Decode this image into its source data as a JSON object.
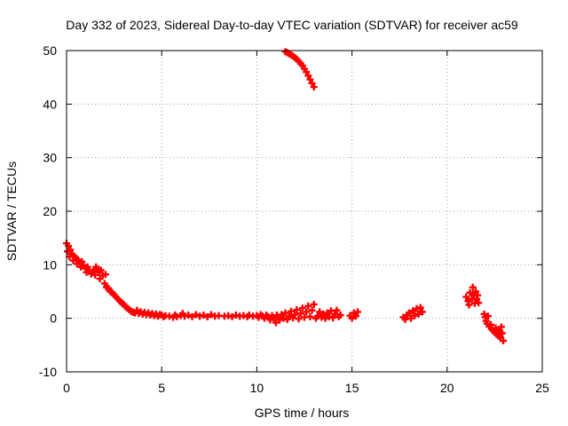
{
  "chart_data": {
    "type": "scatter",
    "title": "Day 332 of 2023, Sidereal Day-to-day VTEC variation (SDTVAR) for receiver ac59",
    "xlabel": "GPS time / hours",
    "ylabel": "SDTVAR / TECUs",
    "xlim": [
      0,
      25
    ],
    "ylim": [
      -10,
      50
    ],
    "xticks": [
      0,
      5,
      10,
      15,
      20,
      25
    ],
    "yticks": [
      -10,
      0,
      10,
      20,
      30,
      40,
      50
    ],
    "grid": true,
    "color": "#ff0000",
    "marker": "plus",
    "series": [
      {
        "name": "SDTVAR",
        "points": [
          [
            0.0,
            14.0
          ],
          [
            0.05,
            12.5
          ],
          [
            0.1,
            13.5
          ],
          [
            0.15,
            11.5
          ],
          [
            0.2,
            12.8
          ],
          [
            0.3,
            12.0
          ],
          [
            0.35,
            10.8
          ],
          [
            0.4,
            11.6
          ],
          [
            0.5,
            11.2
          ],
          [
            0.55,
            10.2
          ],
          [
            0.6,
            10.9
          ],
          [
            0.7,
            10.4
          ],
          [
            0.75,
            9.6
          ],
          [
            0.8,
            10.6
          ],
          [
            0.9,
            9.9
          ],
          [
            1.0,
            9.3
          ],
          [
            1.05,
            8.6
          ],
          [
            1.1,
            9.6
          ],
          [
            1.2,
            9.0
          ],
          [
            1.3,
            8.3
          ],
          [
            1.4,
            8.8
          ],
          [
            1.5,
            8.1
          ],
          [
            1.55,
            9.6
          ],
          [
            1.6,
            9.2
          ],
          [
            1.7,
            8.6
          ],
          [
            1.75,
            7.4
          ],
          [
            1.8,
            9.0
          ],
          [
            1.9,
            8.0
          ],
          [
            2.0,
            6.5
          ],
          [
            2.05,
            8.2
          ],
          [
            2.1,
            5.8
          ],
          [
            2.2,
            5.6
          ],
          [
            2.3,
            5.0
          ],
          [
            2.4,
            4.8
          ],
          [
            2.5,
            4.4
          ],
          [
            2.6,
            4.0
          ],
          [
            2.7,
            3.6
          ],
          [
            2.8,
            3.2
          ],
          [
            2.9,
            2.9
          ],
          [
            3.0,
            2.6
          ],
          [
            3.1,
            2.2
          ],
          [
            3.2,
            1.9
          ],
          [
            3.3,
            1.6
          ],
          [
            3.4,
            1.3
          ],
          [
            3.5,
            1.1
          ],
          [
            3.6,
            1.0
          ],
          [
            3.7,
            1.5
          ],
          [
            3.8,
            0.9
          ],
          [
            3.9,
            1.2
          ],
          [
            4.0,
            0.8
          ],
          [
            4.1,
            1.1
          ],
          [
            4.2,
            0.7
          ],
          [
            4.3,
            1.0
          ],
          [
            4.4,
            0.6
          ],
          [
            4.5,
            0.9
          ],
          [
            4.6,
            0.5
          ],
          [
            4.7,
            0.8
          ],
          [
            4.8,
            0.4
          ],
          [
            4.9,
            0.7
          ],
          [
            5.0,
            0.6
          ],
          [
            5.1,
            0.3
          ],
          [
            5.2,
            0.5
          ],
          [
            5.4,
            0.4
          ],
          [
            5.6,
            0.2
          ],
          [
            5.7,
            0.6
          ],
          [
            5.8,
            0.3
          ],
          [
            6.0,
            0.5
          ],
          [
            6.1,
            0.9
          ],
          [
            6.2,
            0.4
          ],
          [
            6.4,
            0.6
          ],
          [
            6.6,
            0.3
          ],
          [
            6.8,
            0.7
          ],
          [
            7.0,
            0.4
          ],
          [
            7.2,
            0.6
          ],
          [
            7.4,
            0.3
          ],
          [
            7.6,
            0.7
          ],
          [
            7.8,
            0.4
          ],
          [
            8.0,
            0.5
          ],
          [
            8.3,
            0.4
          ],
          [
            8.5,
            0.5
          ],
          [
            8.7,
            0.3
          ],
          [
            8.9,
            0.6
          ],
          [
            9.1,
            0.4
          ],
          [
            9.3,
            0.5
          ],
          [
            9.5,
            0.3
          ],
          [
            9.6,
            0.6
          ],
          [
            9.8,
            0.4
          ],
          [
            10.0,
            0.5
          ],
          [
            10.1,
            0.2
          ],
          [
            10.2,
            0.7
          ],
          [
            10.3,
            0.4
          ],
          [
            10.4,
            0.0
          ],
          [
            10.5,
            0.6
          ],
          [
            10.6,
            0.3
          ],
          [
            10.7,
            -0.3
          ],
          [
            10.8,
            0.5
          ],
          [
            10.9,
            0.1
          ],
          [
            11.0,
            -0.8
          ],
          [
            11.05,
            0.6
          ],
          [
            11.1,
            0.2
          ],
          [
            11.2,
            -0.3
          ],
          [
            11.3,
            0.7
          ],
          [
            11.4,
            0.0
          ],
          [
            11.5,
            1.0
          ],
          [
            11.6,
            -0.2
          ],
          [
            11.7,
            0.4
          ],
          [
            11.8,
            1.3
          ],
          [
            11.9,
            0.1
          ],
          [
            12.0,
            0.7
          ],
          [
            12.1,
            1.6
          ],
          [
            12.2,
            -0.1
          ],
          [
            12.3,
            0.9
          ],
          [
            12.4,
            1.9
          ],
          [
            12.5,
            0.2
          ],
          [
            12.6,
            1.2
          ],
          [
            12.7,
            2.3
          ],
          [
            12.8,
            0.3
          ],
          [
            12.9,
            1.5
          ],
          [
            13.0,
            2.6
          ],
          [
            13.1,
            0.0
          ],
          [
            13.2,
            0.4
          ],
          [
            13.3,
            1.2
          ],
          [
            13.4,
            0.2
          ],
          [
            13.5,
            0.8
          ],
          [
            13.6,
            0.0
          ],
          [
            13.7,
            1.0
          ],
          [
            13.8,
            0.3
          ],
          [
            13.9,
            1.4
          ],
          [
            14.0,
            0.1
          ],
          [
            14.1,
            0.8
          ],
          [
            14.2,
            1.5
          ],
          [
            14.3,
            0.3
          ],
          [
            14.4,
            0.6
          ],
          [
            14.9,
            0.5
          ],
          [
            15.0,
            0.0
          ],
          [
            15.1,
            1.0
          ],
          [
            15.2,
            0.4
          ],
          [
            15.3,
            1.2
          ],
          [
            17.7,
            0.2
          ],
          [
            17.8,
            -0.2
          ],
          [
            17.9,
            0.6
          ],
          [
            18.0,
            1.0
          ],
          [
            18.1,
            0.0
          ],
          [
            18.2,
            1.4
          ],
          [
            18.3,
            0.5
          ],
          [
            18.4,
            1.8
          ],
          [
            18.5,
            0.8
          ],
          [
            18.6,
            2.0
          ],
          [
            18.7,
            1.2
          ],
          [
            21.0,
            4.0
          ],
          [
            21.1,
            3.2
          ],
          [
            21.15,
            2.5
          ],
          [
            21.2,
            4.8
          ],
          [
            21.3,
            3.6
          ],
          [
            21.35,
            5.8
          ],
          [
            21.4,
            4.4
          ],
          [
            21.45,
            2.8
          ],
          [
            21.5,
            5.0
          ],
          [
            21.55,
            3.6
          ],
          [
            21.6,
            4.3
          ],
          [
            21.65,
            2.9
          ],
          [
            21.95,
            0.8
          ],
          [
            22.0,
            0.2
          ],
          [
            22.05,
            -0.5
          ],
          [
            22.1,
            -1.0
          ],
          [
            22.15,
            0.4
          ],
          [
            22.2,
            -1.5
          ],
          [
            22.3,
            -1.2
          ],
          [
            22.35,
            -2.0
          ],
          [
            22.4,
            -2.3
          ],
          [
            22.5,
            -2.6
          ],
          [
            22.55,
            -1.8
          ],
          [
            22.6,
            -3.0
          ],
          [
            22.65,
            -2.2
          ],
          [
            22.7,
            -3.3
          ],
          [
            22.75,
            -2.5
          ],
          [
            22.8,
            -3.6
          ],
          [
            22.85,
            -1.6
          ],
          [
            22.9,
            -2.8
          ],
          [
            22.95,
            -4.2
          ],
          [
            11.5,
            49.8
          ],
          [
            11.6,
            49.6
          ],
          [
            11.7,
            49.4
          ],
          [
            11.8,
            49.2
          ],
          [
            11.9,
            49.0
          ],
          [
            12.0,
            48.7
          ],
          [
            12.1,
            48.4
          ],
          [
            12.2,
            48.0
          ],
          [
            12.3,
            47.6
          ],
          [
            12.4,
            47.2
          ],
          [
            12.5,
            46.6
          ],
          [
            12.6,
            46.0
          ],
          [
            12.7,
            45.3
          ],
          [
            12.8,
            44.6
          ],
          [
            12.9,
            43.9
          ],
          [
            13.0,
            43.2
          ]
        ]
      }
    ]
  }
}
